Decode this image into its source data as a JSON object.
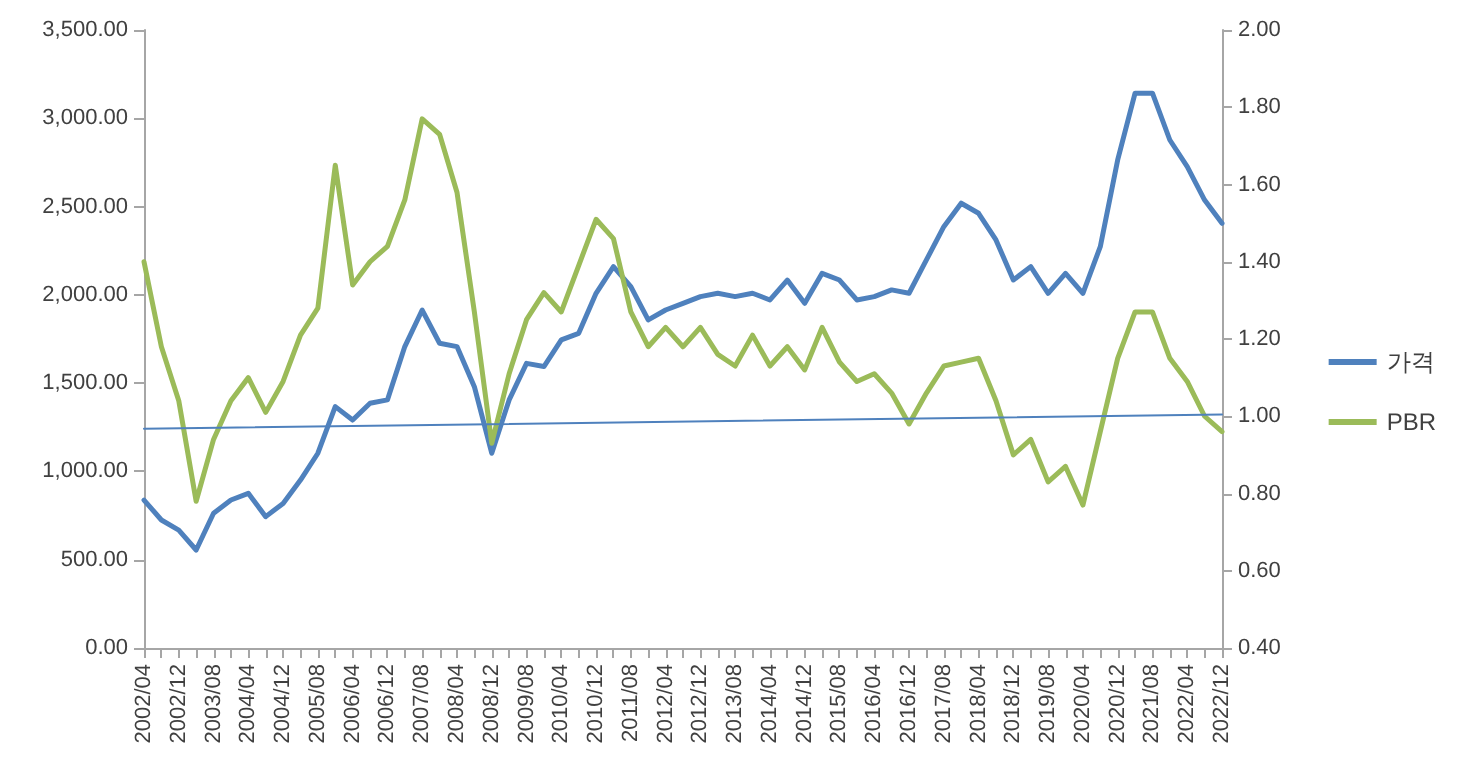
{
  "chart_data": {
    "type": "line",
    "categories": [
      "2002/04",
      null,
      "2002/12",
      null,
      "2003/08",
      null,
      "2004/04",
      null,
      "2004/12",
      null,
      "2005/08",
      null,
      "2006/04",
      null,
      "2006/12",
      null,
      "2007/08",
      null,
      "2008/04",
      null,
      "2008/12",
      null,
      "2009/08",
      null,
      "2010/04",
      null,
      "2010/12",
      null,
      "2011/08",
      null,
      "2012/04",
      null,
      "2012/12",
      null,
      "2013/08",
      null,
      "2014/04",
      null,
      "2014/12",
      null,
      "2015/08",
      null,
      "2016/04",
      null,
      "2016/12",
      null,
      "2017/08",
      null,
      "2018/04",
      null,
      "2018/12",
      null,
      "2019/08",
      null,
      "2020/04",
      null,
      "2020/12",
      null,
      "2021/08",
      null,
      "2022/04",
      null,
      "2022/12"
    ],
    "series": [
      {
        "name": "가격",
        "color": "#4f81bd",
        "values": [
          838,
          725,
          668,
          555,
          763,
          838,
          876,
          744,
          819,
          951,
          1103,
          1367,
          1291,
          1386,
          1405,
          1707,
          1914,
          1726,
          1707,
          1480,
          1103,
          1405,
          1612,
          1594,
          1745,
          1782,
          2009,
          2160,
          2047,
          1858,
          1914,
          1952,
          1990,
          2009,
          1990,
          2009,
          1971,
          2084,
          1952,
          2122,
          2084,
          1971,
          1990,
          2028,
          2009,
          2198,
          2386,
          2519,
          2462,
          2311,
          2084,
          2160,
          2009,
          2122,
          2009,
          2273,
          2764,
          3142,
          3142,
          2877,
          2726,
          2537,
          2405
        ]
      },
      {
        "name": "PBR",
        "color": "#9bbb59",
        "axis": "y2",
        "values": [
          1.4,
          1.18,
          1.04,
          0.78,
          0.94,
          1.04,
          1.1,
          1.01,
          1.09,
          1.21,
          1.28,
          1.65,
          1.34,
          1.4,
          1.44,
          1.56,
          1.77,
          1.73,
          1.58,
          1.27,
          0.93,
          1.11,
          1.25,
          1.32,
          1.27,
          1.39,
          1.51,
          1.46,
          1.27,
          1.18,
          1.23,
          1.18,
          1.23,
          1.16,
          1.13,
          1.21,
          1.13,
          1.18,
          1.12,
          1.23,
          1.14,
          1.09,
          1.11,
          1.06,
          0.98,
          1.06,
          1.13,
          1.14,
          1.15,
          1.04,
          0.9,
          0.94,
          0.83,
          0.87,
          0.77,
          0.96,
          1.15,
          1.27,
          1.27,
          1.15,
          1.09,
          1.0,
          0.96
        ]
      },
      {
        "type": "line",
        "color": "#4f81bd",
        "x": [
          "2002/04",
          "2022/12"
        ],
        "values": [
          1242,
          1322
        ]
      }
    ],
    "ylim": [
      0,
      3500
    ],
    "yticks": [
      {
        "value": 0,
        "label": "0.00"
      },
      {
        "value": 500,
        "label": "500.00"
      },
      {
        "value": 1000,
        "label": "1,000.00"
      },
      {
        "value": 1500,
        "label": "1,500.00"
      },
      {
        "value": 2000,
        "label": "2,000.00"
      },
      {
        "value": 2500,
        "label": "2,500.00"
      },
      {
        "value": 3000,
        "label": "3,000.00"
      },
      {
        "value": 3500,
        "label": "3,500.00"
      }
    ],
    "y2lim": [
      0.4,
      2.0
    ],
    "y2ticks": [
      {
        "value": 0.4,
        "label": "0.40"
      },
      {
        "value": 0.6,
        "label": "0.60"
      },
      {
        "value": 0.8,
        "label": "0.80"
      },
      {
        "value": 1.0,
        "label": "1.00"
      },
      {
        "value": 1.2,
        "label": "1.20"
      },
      {
        "value": 1.4,
        "label": "1.40"
      },
      {
        "value": 1.6,
        "label": "1.60"
      },
      {
        "value": 1.8,
        "label": "1.80"
      },
      {
        "value": 2.0,
        "label": "2.00"
      }
    ],
    "grid": false,
    "legend": "right",
    "marker": "none",
    "line_style": "solid"
  }
}
